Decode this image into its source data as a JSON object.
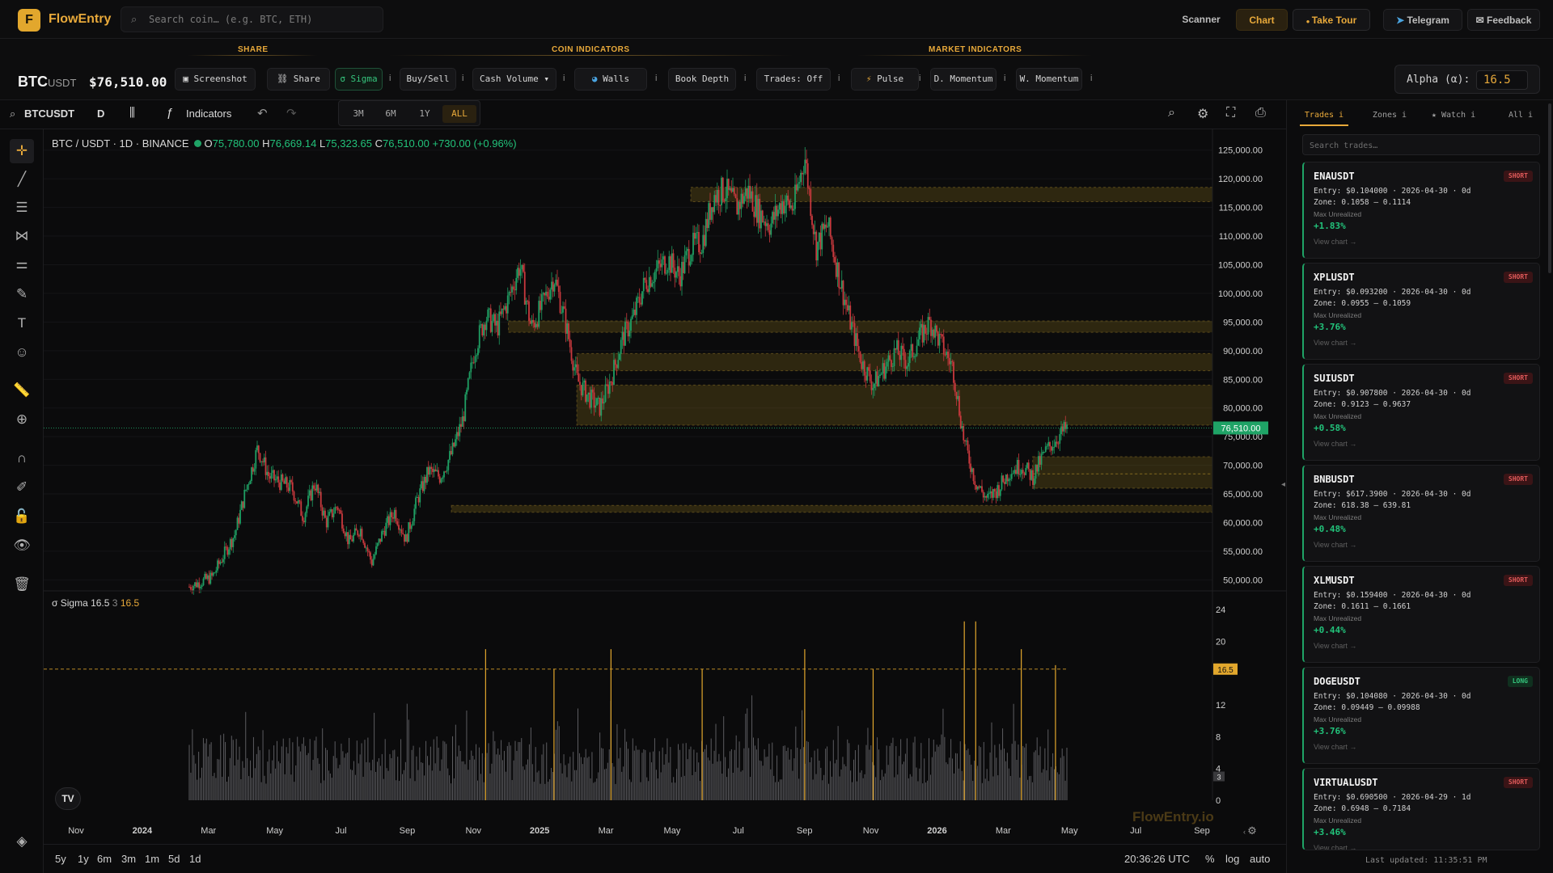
{
  "nav": {
    "brand_letter": "F",
    "brand": "FlowEntry",
    "search_placeholder": "Search coin… (e.g. BTC, ETH)",
    "scanner": "Scanner",
    "chart": "Chart",
    "tour": "Take Tour",
    "telegram": "Telegram",
    "feedback": "Feedback"
  },
  "strip": {
    "groups": {
      "share": "SHARE",
      "coin": "COIN INDICATORS",
      "market": "MARKET INDICATORS"
    },
    "symbol_base": "BTC",
    "symbol_quote": "USDT",
    "price": "$76,510.00",
    "chips": {
      "screenshot": "Screenshot",
      "share": "Share",
      "sigma": "σ Sigma",
      "buysell": "Buy/Sell",
      "cashvolume": "Cash Volume ▾",
      "walls": "Walls",
      "bookdepth": "Book Depth",
      "trades": "Trades: Off",
      "pulse": "Pulse",
      "dmomentum": "D. Momentum",
      "wmomentum": "W. Momentum"
    },
    "info_glyph": "i",
    "alpha_label": "Alpha (α):",
    "alpha_value": "16.5"
  },
  "range": {
    "options": [
      "3M",
      "6M",
      "1Y",
      "ALL"
    ],
    "active": "ALL"
  },
  "toolbar": {
    "symbol": "BTCUSDT",
    "interval": "D",
    "indicators": "Indicators"
  },
  "legend": {
    "title": "BTC / USDT · 1D · BINANCE",
    "o": "75,780.00",
    "h": "76,669.14",
    "l": "75,323.65",
    "c": "76,510.00",
    "change": "+730.00 (+0.96%)"
  },
  "sigma_legend": {
    "name": "σ Sigma 16.5",
    "n": "3",
    "alpha": "16.5"
  },
  "chart_data": {
    "type": "candlestick",
    "price_axis": [
      "125,000.00",
      "120,000.00",
      "115,000.00",
      "110,000.00",
      "105,000.00",
      "100,000.00",
      "95,000.00",
      "90,000.00",
      "85,000.00",
      "80,000.00",
      "75,000.00",
      "70,000.00",
      "65,000.00",
      "60,000.00",
      "55,000.00",
      "50,000.00"
    ],
    "price_range": [
      48500,
      127500
    ],
    "last_price_label": "76,510.00",
    "last_price": 76510,
    "time_axis": [
      "Nov",
      "2024",
      "Mar",
      "May",
      "Jul",
      "Sep",
      "Nov",
      "2025",
      "Mar",
      "May",
      "Jul",
      "Sep",
      "Nov",
      "2026",
      "Mar",
      "May",
      "Jul",
      "Sep"
    ],
    "close_path": [
      [
        0,
        48800
      ],
      [
        2,
        50500
      ],
      [
        4,
        58000
      ],
      [
        5,
        66000
      ],
      [
        6,
        73000
      ],
      [
        7,
        68000
      ],
      [
        9,
        66000
      ],
      [
        10,
        61000
      ],
      [
        11,
        67000
      ],
      [
        12,
        60000
      ],
      [
        13,
        63000
      ],
      [
        14,
        56500
      ],
      [
        15,
        59000
      ],
      [
        16,
        53000
      ],
      [
        17,
        58500
      ],
      [
        18,
        62000
      ],
      [
        19,
        57000
      ],
      [
        20,
        64000
      ],
      [
        21,
        69000
      ],
      [
        22,
        68000
      ],
      [
        23,
        72000
      ],
      [
        24,
        78000
      ],
      [
        25,
        90000
      ],
      [
        26,
        96000
      ],
      [
        27,
        94000
      ],
      [
        28,
        99000
      ],
      [
        29,
        105000
      ],
      [
        30,
        94000
      ],
      [
        31,
        98000
      ],
      [
        32,
        103000
      ],
      [
        33,
        95000
      ],
      [
        34,
        85000
      ],
      [
        35,
        82000
      ],
      [
        36,
        80000
      ],
      [
        37,
        85000
      ],
      [
        38,
        92000
      ],
      [
        39,
        96000
      ],
      [
        40,
        102000
      ],
      [
        41,
        104000
      ],
      [
        42,
        106000
      ],
      [
        43,
        103000
      ],
      [
        44,
        108000
      ],
      [
        45,
        109000
      ],
      [
        46,
        117000
      ],
      [
        47,
        118000
      ],
      [
        48,
        115000
      ],
      [
        49,
        118000
      ],
      [
        50,
        114000
      ],
      [
        51,
        112000
      ],
      [
        52,
        116000
      ],
      [
        53,
        115000
      ],
      [
        54,
        124000
      ],
      [
        55,
        108000
      ],
      [
        56,
        112000
      ],
      [
        57,
        103000
      ],
      [
        58,
        95000
      ],
      [
        59,
        88000
      ],
      [
        60,
        84000
      ],
      [
        61,
        87000
      ],
      [
        62,
        90000
      ],
      [
        63,
        88000
      ],
      [
        64,
        92000
      ],
      [
        65,
        95000
      ],
      [
        66,
        91000
      ],
      [
        67,
        87000
      ],
      [
        68,
        74000
      ],
      [
        69,
        67000
      ],
      [
        70,
        64000
      ],
      [
        71,
        66000
      ],
      [
        72,
        69000
      ],
      [
        73,
        70000
      ],
      [
        74,
        68000
      ],
      [
        75,
        72000
      ],
      [
        76,
        74500
      ],
      [
        77,
        76510
      ]
    ],
    "zones": [
      [
        116000,
        118500
      ],
      [
        93200,
        95200
      ],
      [
        86500,
        89500
      ],
      [
        77000,
        84000
      ],
      [
        68500,
        71500
      ],
      [
        66000,
        68500
      ],
      [
        61800,
        63000
      ]
    ],
    "sigma_axis": [
      "24",
      "20",
      "16.5",
      "12",
      "8",
      "4",
      "3",
      "0"
    ],
    "sigma_threshold": 16.5,
    "sigma_current": 3,
    "sigma_range": [
      0,
      24
    ],
    "sigma_spikes": [
      [
        26,
        19
      ],
      [
        37,
        19
      ],
      [
        32,
        16.5
      ],
      [
        45,
        16.5
      ],
      [
        54,
        19
      ],
      [
        60,
        16.5
      ],
      [
        68,
        22.5
      ],
      [
        69,
        22.5
      ],
      [
        73,
        19
      ],
      [
        76,
        17
      ]
    ]
  },
  "bottom": {
    "timeframes": [
      "5y",
      "1y",
      "6m",
      "3m",
      "1m",
      "5d",
      "1d"
    ],
    "clock": "20:36:26 UTC",
    "pct": "%",
    "log": "log",
    "auto": "auto",
    "watermark": "FlowEntry.io",
    "tv": "TV"
  },
  "panel": {
    "tabs": [
      "Trades i",
      "Zones i",
      "★ Watch i",
      "All i"
    ],
    "search_placeholder": "Search trades…",
    "max_label": "Max Unrealized",
    "view_label": "View chart →",
    "last_updated": "Last updated: 11:35:51 PM",
    "trades": [
      {
        "symbol": "ENAUSDT",
        "side": "SHORT",
        "entry": "Entry: $0.104000 · 2026-04-30 · 0d",
        "zone": "Zone: 0.1058 – 0.1114",
        "pnl": "+1.83%"
      },
      {
        "symbol": "XPLUSDT",
        "side": "SHORT",
        "entry": "Entry: $0.093200 · 2026-04-30 · 0d",
        "zone": "Zone: 0.0955 – 0.1059",
        "pnl": "+3.76%"
      },
      {
        "symbol": "SUIUSDT",
        "side": "SHORT",
        "entry": "Entry: $0.907800 · 2026-04-30 · 0d",
        "zone": "Zone: 0.9123 – 0.9637",
        "pnl": "+0.58%"
      },
      {
        "symbol": "BNBUSDT",
        "side": "SHORT",
        "entry": "Entry: $617.3900 · 2026-04-30 · 0d",
        "zone": "Zone: 618.38 – 639.81",
        "pnl": "+0.48%"
      },
      {
        "symbol": "XLMUSDT",
        "side": "SHORT",
        "entry": "Entry: $0.159400 · 2026-04-30 · 0d",
        "zone": "Zone: 0.1611 – 0.1661",
        "pnl": "+0.44%"
      },
      {
        "symbol": "DOGEUSDT",
        "side": "LONG",
        "entry": "Entry: $0.104080 · 2026-04-30 · 0d",
        "zone": "Zone: 0.09449 – 0.09988",
        "pnl": "+3.76%"
      },
      {
        "symbol": "VIRTUALUSDT",
        "side": "SHORT",
        "entry": "Entry: $0.690500 · 2026-04-29 · 1d",
        "zone": "Zone: 0.6948 – 0.7184",
        "pnl": "+3.46%"
      }
    ]
  }
}
